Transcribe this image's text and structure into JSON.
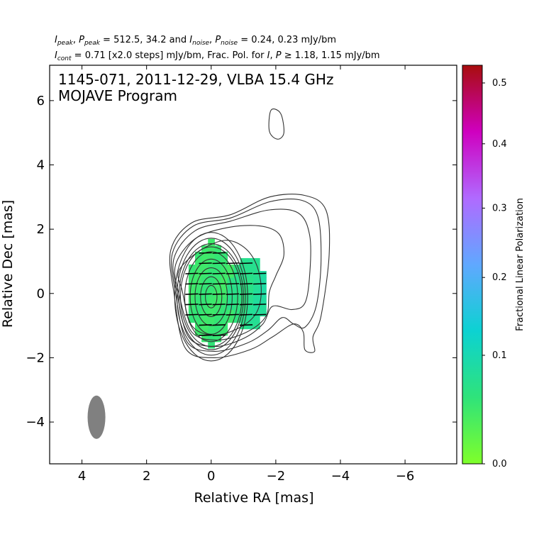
{
  "header": {
    "peak_values": "512.5, 34.2",
    "noise_values": "0.24, 0.23 mJy/bm",
    "cont_text": "= 0.71 [x2.0 steps] mJy/bm, Frac. Pol. for",
    "frac_threshold": "≥ 1.18, 1.15 mJy/bm"
  },
  "chart_data": {
    "type": "heatmap",
    "title": "1145-071, 2011-12-29, VLBA 15.4 GHz",
    "subtitle": "MOJAVE Program",
    "xlabel": "Relative RA [mas]",
    "ylabel": "Relative Dec [mas]",
    "xlim": [
      5.0,
      -7.6
    ],
    "ylim": [
      -5.3,
      7.1
    ],
    "x_inverted": true,
    "xticks": [
      4,
      2,
      0,
      -2,
      -4,
      -6
    ],
    "yticks": [
      -4,
      -2,
      0,
      2,
      4,
      6
    ],
    "xtick_labels": [
      "4",
      "2",
      "0",
      "−2",
      "−4",
      "−6"
    ],
    "ytick_labels": [
      "−4",
      "−2",
      "0",
      "2",
      "4",
      "6"
    ],
    "colorbar": {
      "label": "Fractional Linear Polarization",
      "range": [
        0.0,
        0.53
      ],
      "ticks": [
        0.0,
        0.1,
        0.2,
        0.3,
        0.4,
        0.5
      ],
      "tick_labels": [
        "0.0",
        "0.1",
        "0.2",
        "0.3",
        "0.4",
        "0.5"
      ],
      "colors": [
        "#7fff2a",
        "#2fe37a",
        "#0cd2d2",
        "#60a8ff",
        "#b06aff",
        "#cf00bf",
        "#a80d0d"
      ]
    },
    "core_contours": {
      "center": [
        0.0,
        -0.1
      ],
      "semi_axes_mas": [
        [
          0.18,
          0.35
        ],
        [
          0.33,
          0.62
        ],
        [
          0.5,
          0.9
        ],
        [
          0.65,
          1.17
        ],
        [
          0.82,
          1.4
        ],
        [
          0.95,
          1.55
        ],
        [
          1.0,
          1.65
        ],
        [
          1.06,
          1.82
        ],
        [
          1.13,
          2.0
        ]
      ]
    },
    "jet_contours": [
      [
        [
          0.9,
          0.1
        ],
        [
          1.0,
          0.7
        ],
        [
          0.4,
          1.3
        ],
        [
          -0.4,
          1.65
        ],
        [
          -1.0,
          1.45
        ],
        [
          -1.4,
          0.9
        ],
        [
          -1.55,
          0.1
        ],
        [
          -1.4,
          -0.6
        ],
        [
          -0.9,
          -1.05
        ],
        [
          -0.1,
          -1.3
        ],
        [
          0.6,
          -1.0
        ]
      ],
      [
        [
          1.0,
          0.0
        ],
        [
          1.1,
          0.9
        ],
        [
          0.5,
          1.7
        ],
        [
          -0.5,
          2.05
        ],
        [
          -1.5,
          2.1
        ],
        [
          -2.1,
          1.85
        ],
        [
          -2.25,
          1.2
        ],
        [
          -2.0,
          0.55
        ],
        [
          -1.8,
          0.05
        ],
        [
          -1.7,
          -0.7
        ],
        [
          -1.1,
          -1.2
        ],
        [
          -0.2,
          -1.45
        ],
        [
          0.6,
          -1.2
        ]
      ],
      [
        [
          1.05,
          0.0
        ],
        [
          1.15,
          1.1
        ],
        [
          0.5,
          1.95
        ],
        [
          -0.6,
          2.25
        ],
        [
          -1.8,
          2.6
        ],
        [
          -2.7,
          2.5
        ],
        [
          -3.05,
          1.8
        ],
        [
          -3.05,
          0.6
        ],
        [
          -2.9,
          -0.3
        ],
        [
          -2.5,
          -0.5
        ],
        [
          -1.9,
          -0.4
        ],
        [
          -1.6,
          -0.95
        ],
        [
          -1.0,
          -1.4
        ],
        [
          -0.1,
          -1.65
        ],
        [
          0.7,
          -1.35
        ]
      ],
      [
        [
          1.1,
          0.0
        ],
        [
          1.2,
          1.25
        ],
        [
          0.55,
          2.1
        ],
        [
          -0.6,
          2.35
        ],
        [
          -1.8,
          2.85
        ],
        [
          -2.8,
          2.9
        ],
        [
          -3.3,
          2.4
        ],
        [
          -3.4,
          1.0
        ],
        [
          -3.25,
          -0.4
        ],
        [
          -2.9,
          -1.05
        ],
        [
          -2.55,
          -0.95
        ],
        [
          -2.2,
          -0.75
        ],
        [
          -1.75,
          -1.15
        ],
        [
          -1.1,
          -1.55
        ],
        [
          -0.1,
          -1.8
        ],
        [
          0.75,
          -1.5
        ]
      ],
      [
        [
          1.15,
          0.0
        ],
        [
          1.25,
          1.35
        ],
        [
          0.6,
          2.2
        ],
        [
          -0.6,
          2.45
        ],
        [
          -1.8,
          3.0
        ],
        [
          -2.9,
          3.05
        ],
        [
          -3.55,
          2.6
        ],
        [
          -3.65,
          1.2
        ],
        [
          -3.4,
          -0.7
        ],
        [
          -3.15,
          -1.35
        ],
        [
          -3.2,
          -1.8
        ],
        [
          -2.9,
          -1.75
        ],
        [
          -2.85,
          -1.2
        ],
        [
          -2.55,
          -0.95
        ],
        [
          -1.9,
          -1.35
        ],
        [
          -1.2,
          -1.75
        ],
        [
          -0.1,
          -2.0
        ],
        [
          0.8,
          -1.7
        ]
      ],
      [
        [
          -1.85,
          5.7
        ],
        [
          -2.15,
          5.6
        ],
        [
          -2.25,
          5.0
        ],
        [
          -2.05,
          4.8
        ],
        [
          -1.8,
          5.05
        ]
      ]
    ],
    "polarization_pixels": {
      "pixel_size_mas": 0.2,
      "core_region": {
        "center": [
          0.0,
          0.0
        ],
        "semi_axes": [
          0.72,
          1.6
        ],
        "fraction": 0.07
      },
      "knot_region": {
        "center": [
          -1.15,
          0.0
        ],
        "semi_axes": [
          0.6,
          1.15
        ],
        "fraction": 0.09
      },
      "bridge_region": {
        "center": [
          -0.7,
          0.15
        ],
        "semi_axes": [
          0.35,
          0.85
        ],
        "fraction": 0.065
      }
    },
    "evpa_ticks_deg": 92,
    "beam": {
      "center": [
        3.55,
        -3.85
      ],
      "major_mas": 1.35,
      "minor_mas": 0.55,
      "pa_deg": 0
    }
  }
}
